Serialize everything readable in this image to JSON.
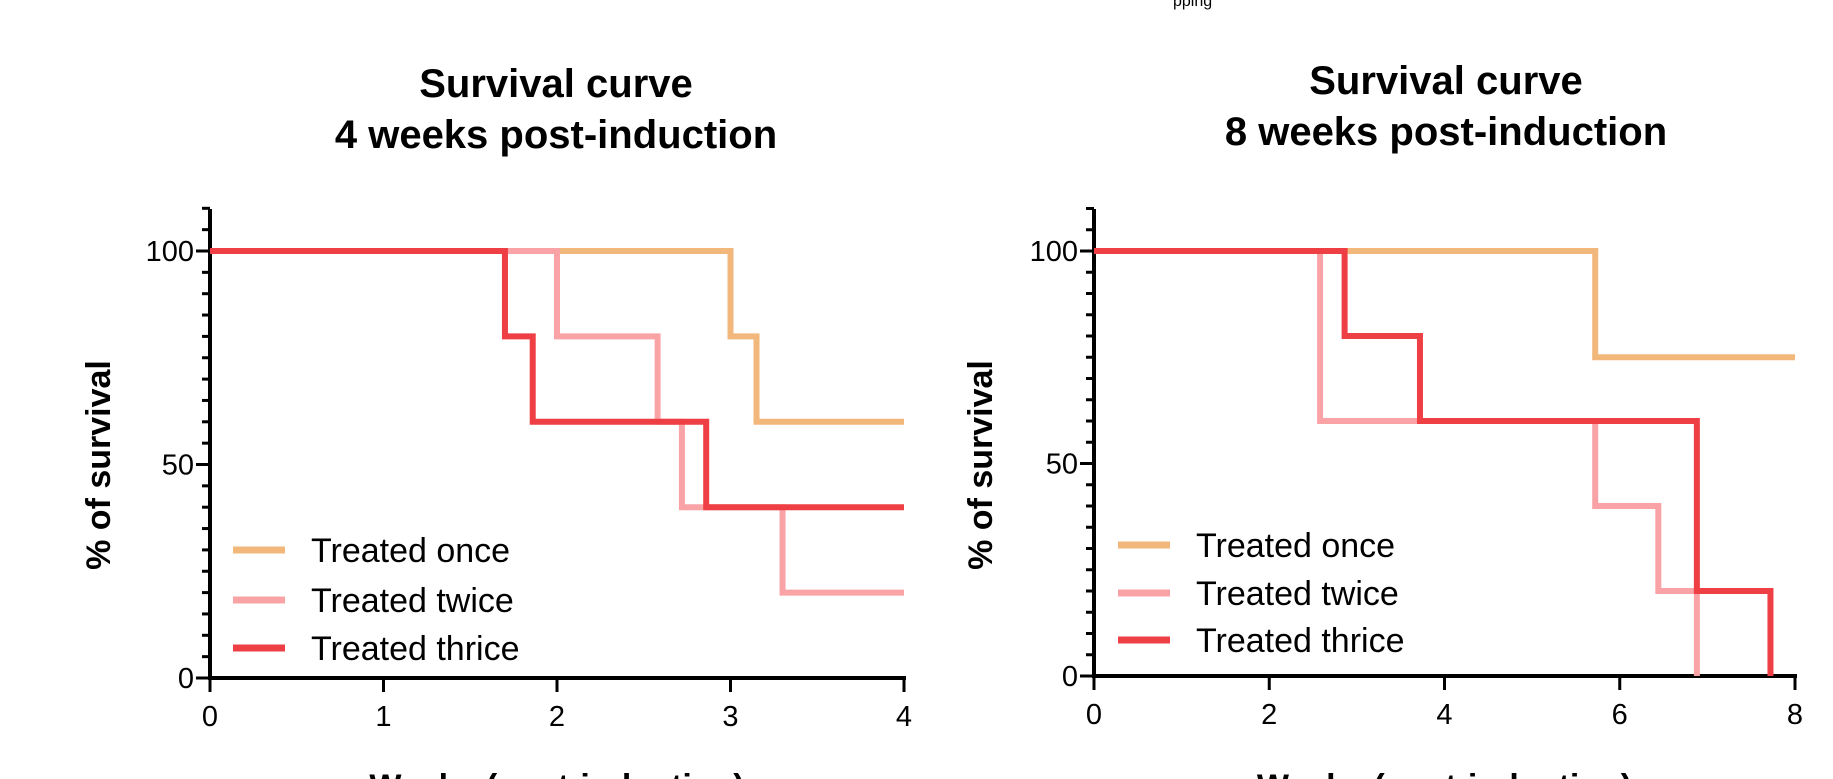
{
  "top_note": "pping",
  "colors": {
    "once": "#f2b77b",
    "twice": "#f9a3a6",
    "thrice": "#ee3f44"
  },
  "chart_data": [
    {
      "type": "line",
      "step": true,
      "title_lines": [
        "Survival curve",
        "4 weeks post-induction"
      ],
      "xlabel": "Weeks (post-induction)",
      "ylabel": "% of survival",
      "xlim": [
        0,
        4
      ],
      "ylim": [
        0,
        100
      ],
      "x_ticks": [
        0,
        1,
        2,
        3,
        4
      ],
      "y_ticks": [
        0,
        50,
        100
      ],
      "y_minor_step": 5,
      "legend": "bottom-left",
      "series": [
        {
          "name": "Treated once",
          "color": "#f2b77b",
          "x": [
            0,
            3.0,
            3.15,
            4
          ],
          "y": [
            100,
            80,
            60,
            60
          ]
        },
        {
          "name": "Treated twice",
          "color": "#f9a3a6",
          "x": [
            0,
            2.0,
            2.58,
            2.72,
            3.3,
            4
          ],
          "y": [
            100,
            80,
            60,
            40,
            20,
            20
          ]
        },
        {
          "name": "Treated thrice",
          "color": "#ee3f44",
          "x": [
            0,
            1.7,
            1.86,
            2.86,
            4
          ],
          "y": [
            100,
            80,
            60,
            40,
            40
          ]
        }
      ]
    },
    {
      "type": "line",
      "step": true,
      "title_lines": [
        "Survival curve",
        "8 weeks post-induction"
      ],
      "xlabel": "Weeks (post-induction)",
      "ylabel": "% of survival",
      "xlim": [
        0,
        8
      ],
      "ylim": [
        0,
        100
      ],
      "x_ticks": [
        0,
        2,
        4,
        6,
        8
      ],
      "y_ticks": [
        0,
        50,
        100
      ],
      "y_minor_step": 5,
      "legend": "bottom-left",
      "series": [
        {
          "name": "Treated once",
          "color": "#f2b77b",
          "x": [
            0,
            5.72,
            8
          ],
          "y": [
            100,
            75,
            75
          ]
        },
        {
          "name": "Treated twice",
          "color": "#f9a3a6",
          "x": [
            0,
            2.58,
            5.72,
            6.44,
            6.88
          ],
          "y": [
            100,
            60,
            40,
            20,
            0
          ]
        },
        {
          "name": "Treated thrice",
          "color": "#ee3f44",
          "x": [
            0,
            2.86,
            3.72,
            6.88,
            7.72
          ],
          "y": [
            100,
            80,
            60,
            20,
            0
          ]
        }
      ]
    }
  ]
}
